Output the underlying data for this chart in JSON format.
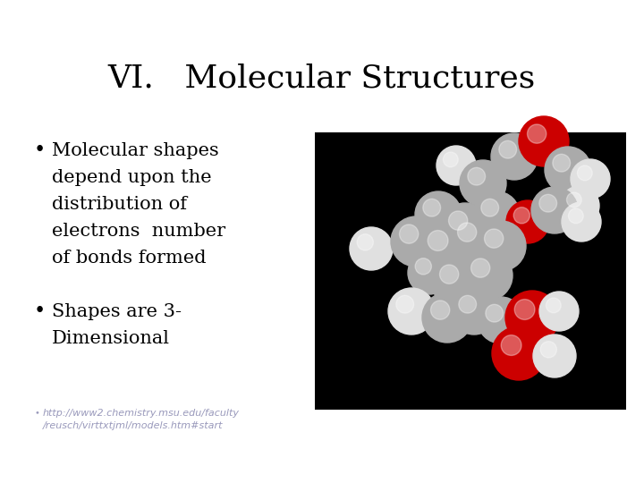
{
  "title": "VI.   Molecular Structures",
  "title_fontsize": 26,
  "title_font": "serif",
  "background_color": "#ffffff",
  "bullet1_lines": [
    "Molecular shapes",
    "depend upon the",
    "distribution of",
    "electrons  number",
    "of bonds formed"
  ],
  "bullet2_lines": [
    "Shapes are 3-",
    "Dimensional"
  ],
  "bullet_fontsize": 15,
  "bullet_font": "serif",
  "url_line1": "http://www2.chemistry.msu.edu/faculty",
  "url_line2": "/reusch/virttxtjml/models.htm#start",
  "url_fontsize": 8,
  "url_color": "#9999bb",
  "img_bg_color": "#000000",
  "sphere_gray": "#aaaaaa",
  "sphere_white": "#e0e0e0",
  "sphere_red": "#cc0000"
}
